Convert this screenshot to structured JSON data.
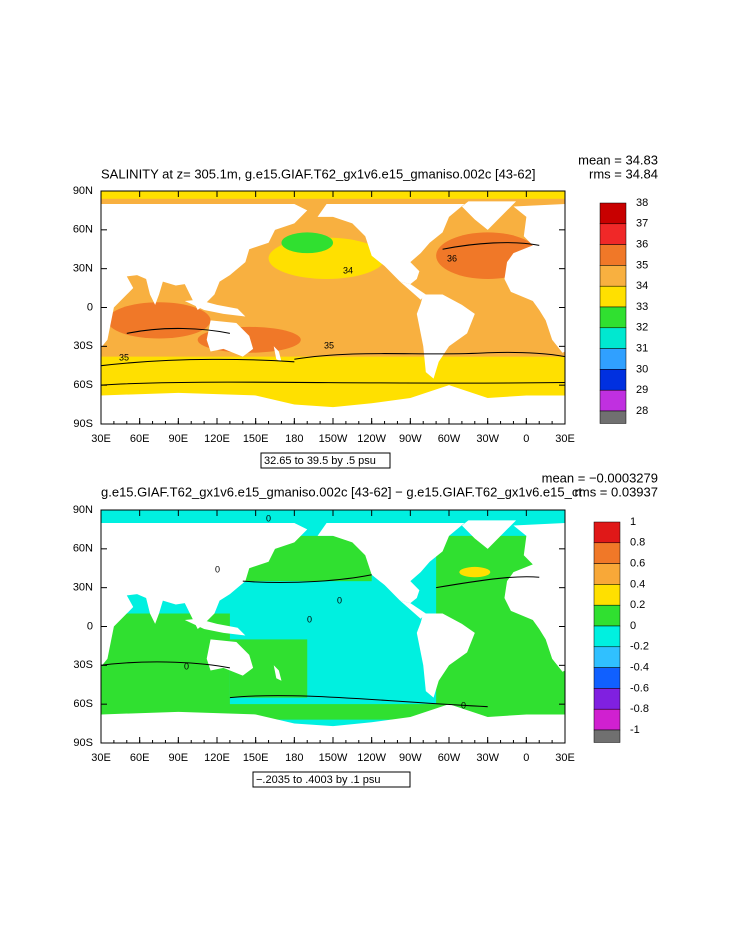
{
  "panels": [
    {
      "title": "SALINITY at z= 305.1m, g.e15.GIAF.T62_gx1v6.e15_gmaniso.002c [43-62]",
      "mean": "mean = 34.83",
      "rms": "rms = 34.84",
      "lat_labels": [
        "90N",
        "60N",
        "30N",
        "0",
        "30S",
        "60S",
        "90S"
      ],
      "lon_labels": [
        "30E",
        "60E",
        "90E",
        "120E",
        "150E",
        "180",
        "150W",
        "120W",
        "90W",
        "60W",
        "30W",
        "0",
        "30E"
      ],
      "colorbar": {
        "labels": [
          38,
          37,
          36,
          35,
          34,
          33,
          32,
          31,
          30,
          29,
          28
        ],
        "colors": [
          "#c80000",
          "#f02828",
          "#f07828",
          "#f8b040",
          "#ffe000",
          "#30e030",
          "#00e8d0",
          "#30a0ff",
          "#0030e0",
          "#c030e0",
          "#707070"
        ]
      },
      "range_note": "32.65 to 39.5 by .5 psu",
      "contour_labels": [
        "34",
        "36",
        "35",
        "35"
      ]
    },
    {
      "title": "g.e15.GIAF.T62_gx1v6.e15_gmaniso.002c [43-62] − g.e15.GIAF.T62_gx1v6.e15_ct",
      "mean": "mean = −0.0003279",
      "rms": "rms = 0.03937",
      "lat_labels": [
        "90N",
        "60N",
        "30N",
        "0",
        "30S",
        "60S",
        "90S"
      ],
      "lon_labels": [
        "30E",
        "60E",
        "90E",
        "120E",
        "150E",
        "180",
        "150W",
        "120W",
        "90W",
        "60W",
        "30W",
        "0",
        "30E"
      ],
      "colorbar": {
        "labels": [
          1,
          0.8,
          0.6,
          0.4,
          0.2,
          0,
          -0.2,
          -0.4,
          -0.6,
          -0.8,
          -1
        ],
        "colors": [
          "#e01818",
          "#f07828",
          "#f8a838",
          "#ffe000",
          "#30e030",
          "#00f0e0",
          "#30c0ff",
          "#1060ff",
          "#8020e0",
          "#d020d0",
          "#707070"
        ]
      },
      "range_note": "−.2035 to .4003 by .1 psu",
      "contour_labels": [
        "0",
        "0",
        "0",
        "0",
        "0",
        "0"
      ]
    }
  ]
}
